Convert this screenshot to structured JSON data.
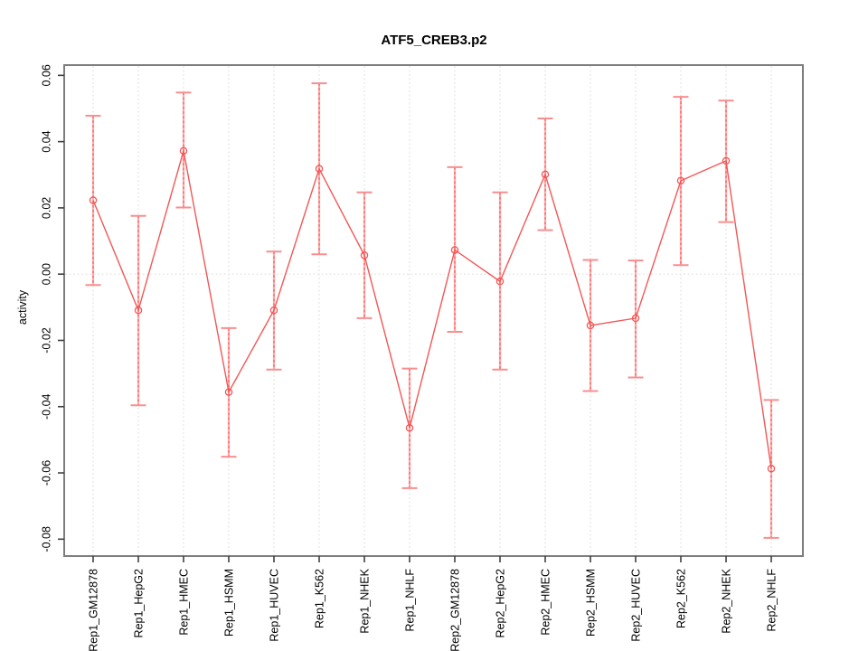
{
  "chart_data": {
    "type": "line",
    "title": "ATF5_CREB3.p2",
    "ylabel": "activity",
    "xlabel": "",
    "categories": [
      "Rep1_GM12878",
      "Rep1_HepG2",
      "Rep1_HMEC",
      "Rep1_HSMM",
      "Rep1_HUVEC",
      "Rep1_K562",
      "Rep1_NHEK",
      "Rep1_NHLF",
      "Rep2_GM12878",
      "Rep2_HepG2",
      "Rep2_HMEC",
      "Rep2_HSMM",
      "Rep2_HUVEC",
      "Rep2_K562",
      "Rep2_NHEK",
      "Rep2_NHLF"
    ],
    "series": [
      {
        "name": "activity",
        "values": [
          0.0223,
          -0.0109,
          0.0372,
          -0.0356,
          -0.0109,
          0.0318,
          0.0057,
          -0.0464,
          0.0073,
          -0.0022,
          0.0301,
          -0.0155,
          -0.0133,
          0.0282,
          0.0342,
          -0.0587
        ],
        "lower": [
          -0.0033,
          -0.0396,
          0.0201,
          -0.0551,
          -0.0288,
          0.006,
          -0.0133,
          -0.0646,
          -0.0174,
          -0.0288,
          0.0133,
          -0.0353,
          -0.0312,
          0.0027,
          0.0157,
          -0.0796
        ],
        "upper": [
          0.0478,
          0.0176,
          0.0548,
          -0.0163,
          0.0068,
          0.0576,
          0.0247,
          -0.0285,
          0.0323,
          0.0247,
          0.047,
          0.0043,
          0.0041,
          0.0535,
          0.0524,
          -0.038
        ]
      }
    ],
    "ylim": [
      -0.0851,
      0.0631
    ],
    "yticks": [
      -0.08,
      -0.06,
      -0.04,
      -0.02,
      0,
      0.02,
      0.04,
      0.06
    ],
    "grid": {
      "vertical_gridlines": true,
      "zero_line": true,
      "horizontal_gridlines": false
    },
    "legend_position": "none",
    "marker": "open-circle",
    "error_bars": true,
    "colors": {
      "line": "#f25757",
      "marker": "#f25757",
      "error_bar_fill": "#ffacac",
      "error_bar_cap": "#f78f8f",
      "error_bar_dash": "#f25757",
      "gridline": "#e4e4e4",
      "frame": "#7d7d7d",
      "tick": "#404040",
      "text": "#000000",
      "background": "#ffffff"
    }
  }
}
